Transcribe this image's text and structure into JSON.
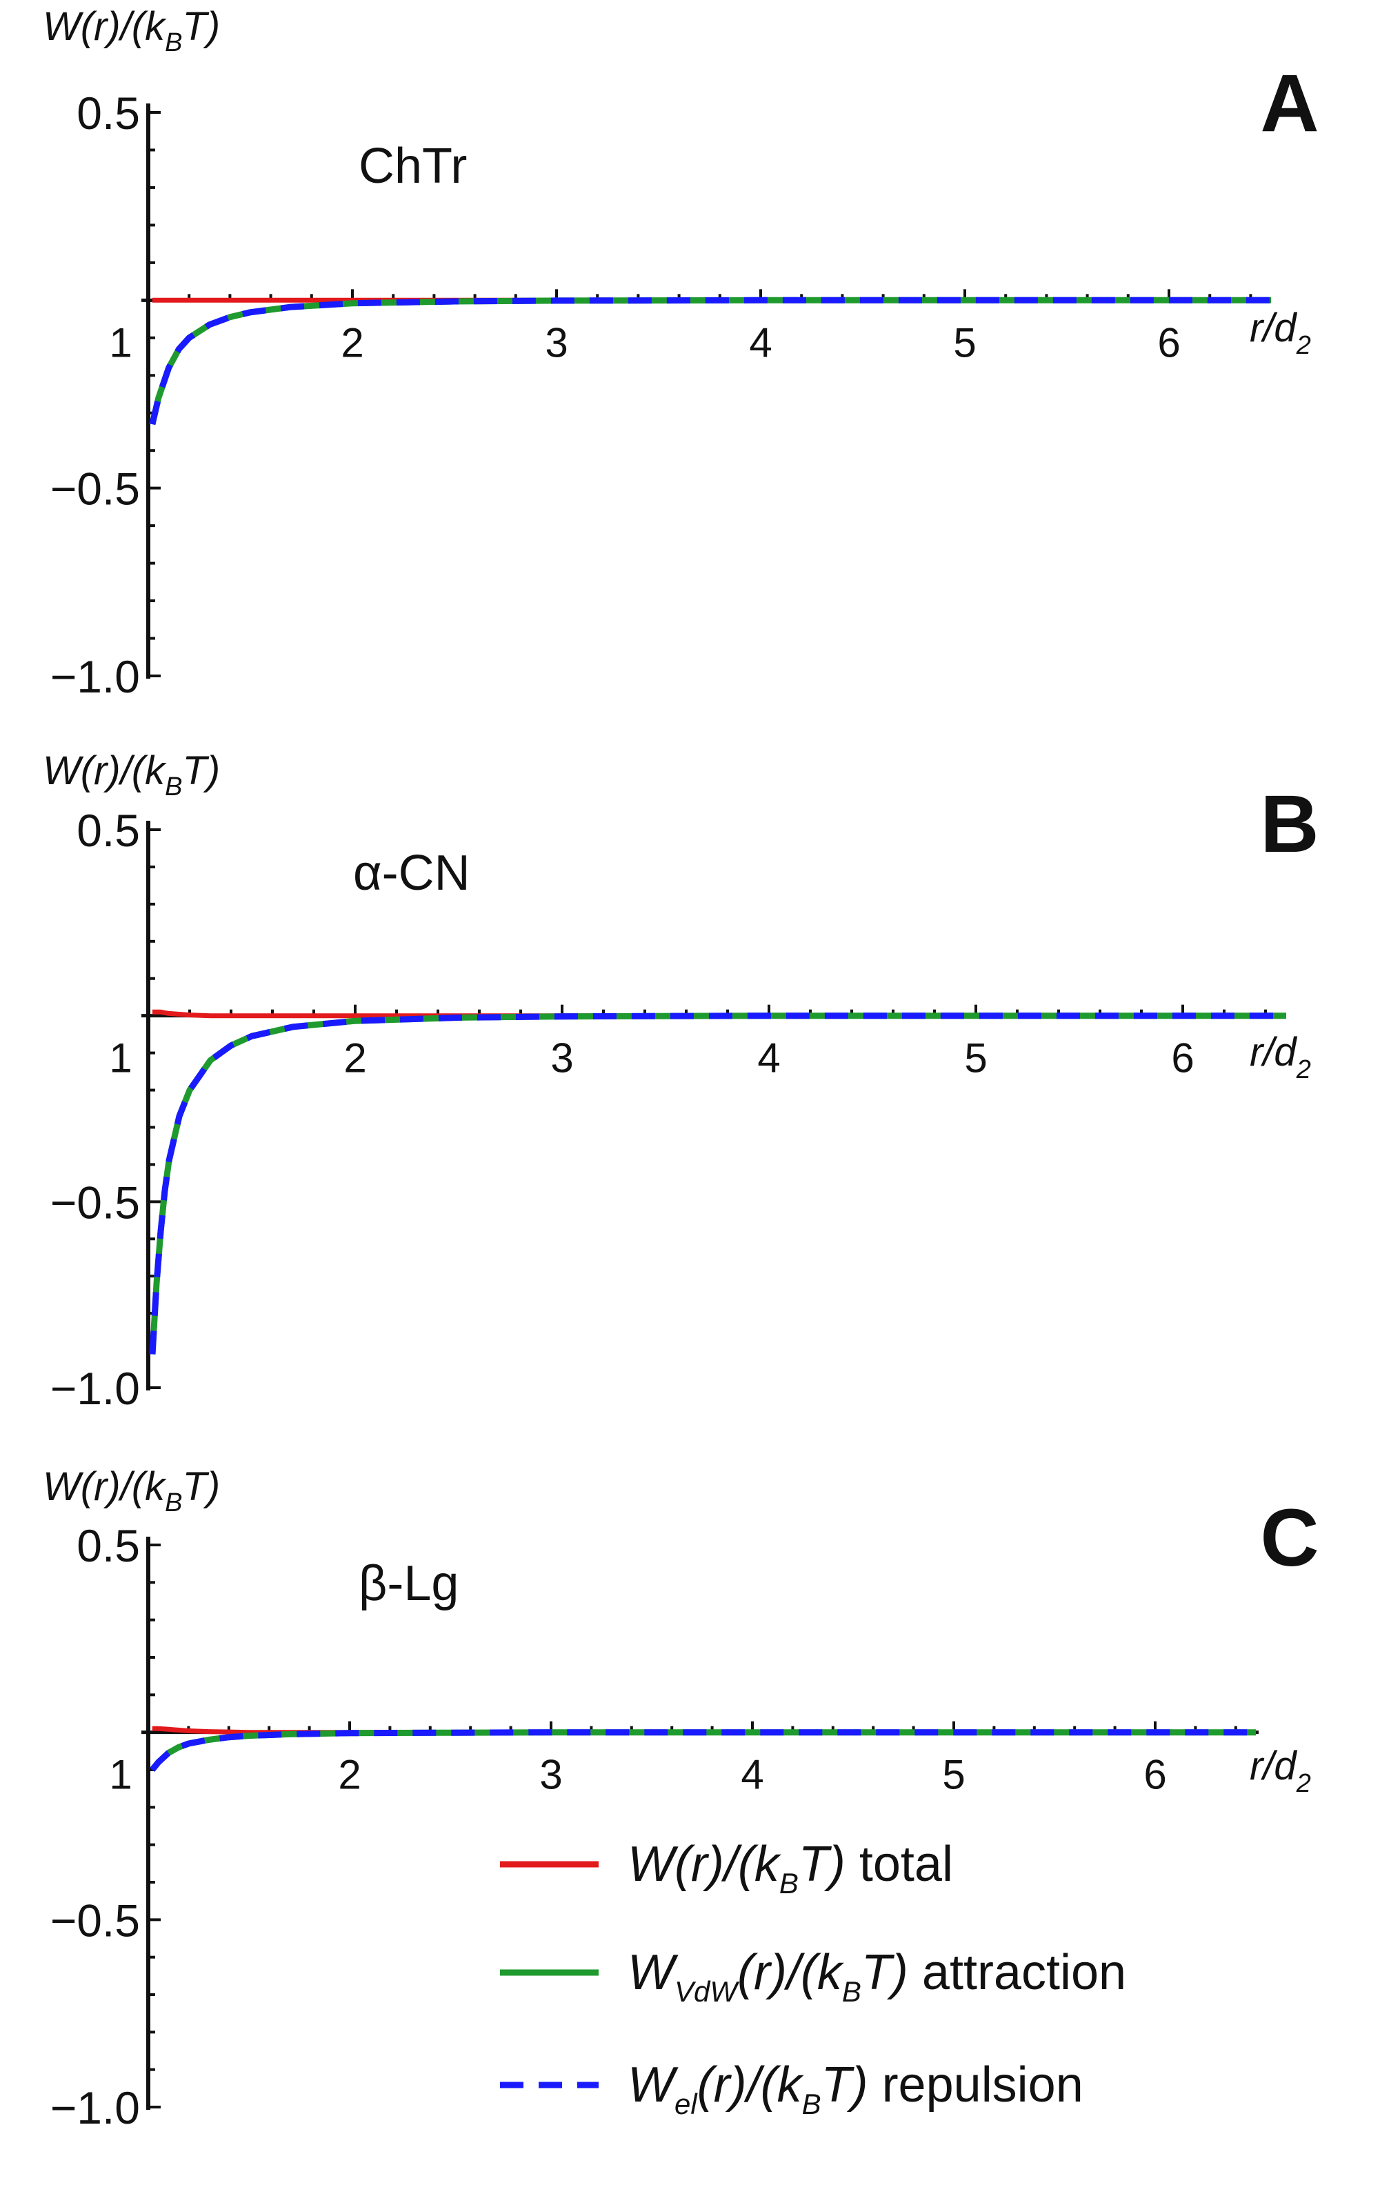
{
  "panels": [
    {
      "letter": "A",
      "annotation": "ChTr",
      "ylabel": {
        "main": "W(r)/(k",
        "sub": "B",
        "tail": "T)"
      },
      "xlabel": {
        "main": "r/d",
        "sub": "2"
      },
      "y_ticks": [
        "0.5",
        "−0.5",
        "−1.0"
      ],
      "x_ticks": [
        "1",
        "2",
        "3",
        "4",
        "5",
        "6"
      ]
    },
    {
      "letter": "B",
      "annotation": "α-CN",
      "ylabel": {
        "main": "W(r)/(k",
        "sub": "B",
        "tail": "T)"
      },
      "xlabel": {
        "main": "r/d",
        "sub": "2"
      },
      "y_ticks": [
        "0.5",
        "−0.5",
        "−1.0"
      ],
      "x_ticks": [
        "1",
        "2",
        "3",
        "4",
        "5",
        "6"
      ]
    },
    {
      "letter": "C",
      "annotation": "β-Lg",
      "ylabel": {
        "main": "W(r)/(k",
        "sub": "B",
        "tail": "T)"
      },
      "xlabel": {
        "main": "r/d",
        "sub": "2"
      },
      "y_ticks": [
        "0.5",
        "−0.5",
        "−1.0"
      ],
      "x_ticks": [
        "1",
        "2",
        "3",
        "4",
        "5",
        "6"
      ]
    }
  ],
  "legend": [
    {
      "color": "#e31a1c",
      "dashed": false,
      "parts": [
        {
          "t": "W(r)/(k",
          "it": true
        },
        {
          "t": "B",
          "sub": true,
          "it": true
        },
        {
          "t": "T)",
          "it": true
        },
        {
          "t": " total",
          "it": false
        }
      ]
    },
    {
      "color": "#1f9a2e",
      "dashed": false,
      "parts": [
        {
          "t": "W",
          "it": true
        },
        {
          "t": "VdW",
          "sub": true,
          "it": true
        },
        {
          "t": "(r)/(k",
          "it": true
        },
        {
          "t": "B",
          "sub": true,
          "it": true
        },
        {
          "t": "T)",
          "it": true
        },
        {
          "t": " attraction",
          "it": false
        }
      ]
    },
    {
      "color": "#1a1aff",
      "dashed": true,
      "parts": [
        {
          "t": "W",
          "it": true
        },
        {
          "t": "el",
          "sub": true,
          "it": true
        },
        {
          "t": "(r)/(k",
          "it": true
        },
        {
          "t": "B",
          "sub": true,
          "it": true
        },
        {
          "t": "T)",
          "it": true
        },
        {
          "t": " repulsion",
          "it": false
        }
      ]
    }
  ],
  "colors": {
    "total": "#e31a1c",
    "attraction": "#1f9a2e",
    "repulsion": "#1a1aff",
    "axis": "#111111"
  },
  "chart_data": [
    {
      "type": "line",
      "panel": "A",
      "xlim": [
        1,
        6.6
      ],
      "ylim": [
        -1.0,
        0.5
      ],
      "y_tick_values": [
        0.5,
        -0.5,
        -1.0
      ],
      "x_tick_values": [
        1,
        2,
        3,
        4,
        5,
        6
      ],
      "x": [
        1.02,
        1.05,
        1.1,
        1.15,
        1.2,
        1.3,
        1.4,
        1.5,
        1.7,
        2.0,
        2.5,
        3,
        4,
        5,
        6,
        6.5
      ],
      "series": [
        {
          "name": "W(r)/(kBT) total",
          "values": [
            0.0,
            0.0,
            0.0,
            0.0,
            0.0,
            0.0,
            0.0,
            0.0,
            0.0,
            0.0,
            0.0,
            0.0,
            0.0,
            0.0,
            0.0,
            0.0
          ]
        },
        {
          "name": "WVdW(r)/(kBT) attraction",
          "values": [
            -0.33,
            -0.26,
            -0.18,
            -0.13,
            -0.1,
            -0.065,
            -0.045,
            -0.032,
            -0.018,
            -0.008,
            -0.003,
            -0.001,
            0.0,
            0.0,
            0.0,
            0.0
          ]
        },
        {
          "name": "Wel(r)/(kBT) repulsion",
          "values": [
            -0.33,
            -0.26,
            -0.18,
            -0.13,
            -0.1,
            -0.065,
            -0.045,
            -0.032,
            -0.018,
            -0.008,
            -0.003,
            -0.001,
            0.0,
            0.0,
            0.0,
            0.0
          ]
        }
      ]
    },
    {
      "type": "line",
      "panel": "B",
      "xlim": [
        1,
        6.6
      ],
      "ylim": [
        -1.0,
        0.5
      ],
      "y_tick_values": [
        0.5,
        -0.5,
        -1.0
      ],
      "x_tick_values": [
        1,
        2,
        3,
        4,
        5,
        6
      ],
      "x": [
        1.02,
        1.04,
        1.06,
        1.08,
        1.1,
        1.15,
        1.2,
        1.3,
        1.4,
        1.5,
        1.7,
        2.0,
        2.5,
        3,
        4,
        5,
        6,
        6.5
      ],
      "series": [
        {
          "name": "W(r)/(kBT) total",
          "values": [
            0.01,
            0.01,
            0.01,
            0.008,
            0.006,
            0.004,
            0.002,
            0.0,
            0.0,
            0.0,
            0.0,
            0.0,
            0.0,
            0.0,
            0.0,
            0.0,
            0.0,
            0.0
          ]
        },
        {
          "name": "WVdW(r)/(kBT) attraction",
          "values": [
            -0.91,
            -0.72,
            -0.58,
            -0.47,
            -0.39,
            -0.27,
            -0.2,
            -0.12,
            -0.08,
            -0.055,
            -0.03,
            -0.014,
            -0.005,
            -0.002,
            0.0,
            0.0,
            0.0,
            0.0
          ]
        },
        {
          "name": "Wel(r)/(kBT) repulsion",
          "values": [
            -0.91,
            -0.72,
            -0.58,
            -0.47,
            -0.39,
            -0.27,
            -0.2,
            -0.12,
            -0.08,
            -0.055,
            -0.03,
            -0.014,
            -0.005,
            -0.002,
            0.0,
            0.0,
            0.0,
            0.0
          ]
        }
      ]
    },
    {
      "type": "line",
      "panel": "C",
      "xlim": [
        1,
        6.6
      ],
      "ylim": [
        -1.0,
        0.5
      ],
      "y_tick_values": [
        0.5,
        -0.5,
        -1.0
      ],
      "x_tick_values": [
        1,
        2,
        3,
        4,
        5,
        6
      ],
      "x": [
        1.02,
        1.05,
        1.1,
        1.15,
        1.2,
        1.3,
        1.4,
        1.5,
        1.7,
        2.0,
        2.5,
        3,
        4,
        5,
        6,
        6.5
      ],
      "series": [
        {
          "name": "W(r)/(kBT) total",
          "values": [
            0.01,
            0.01,
            0.008,
            0.006,
            0.004,
            0.002,
            0.001,
            0.0,
            0.0,
            0.0,
            0.0,
            0.0,
            0.0,
            0.0,
            0.0,
            0.0
          ]
        },
        {
          "name": "WVdW(r)/(kBT) attraction",
          "values": [
            -0.1,
            -0.08,
            -0.055,
            -0.04,
            -0.03,
            -0.02,
            -0.013,
            -0.009,
            -0.005,
            -0.002,
            -0.001,
            0.0,
            0.0,
            0.0,
            0.0,
            0.0
          ]
        },
        {
          "name": "Wel(r)/(kBT) repulsion",
          "values": [
            -0.1,
            -0.08,
            -0.055,
            -0.04,
            -0.03,
            -0.02,
            -0.013,
            -0.009,
            -0.005,
            -0.002,
            -0.001,
            0.0,
            0.0,
            0.0,
            0.0,
            0.0
          ]
        }
      ]
    }
  ]
}
